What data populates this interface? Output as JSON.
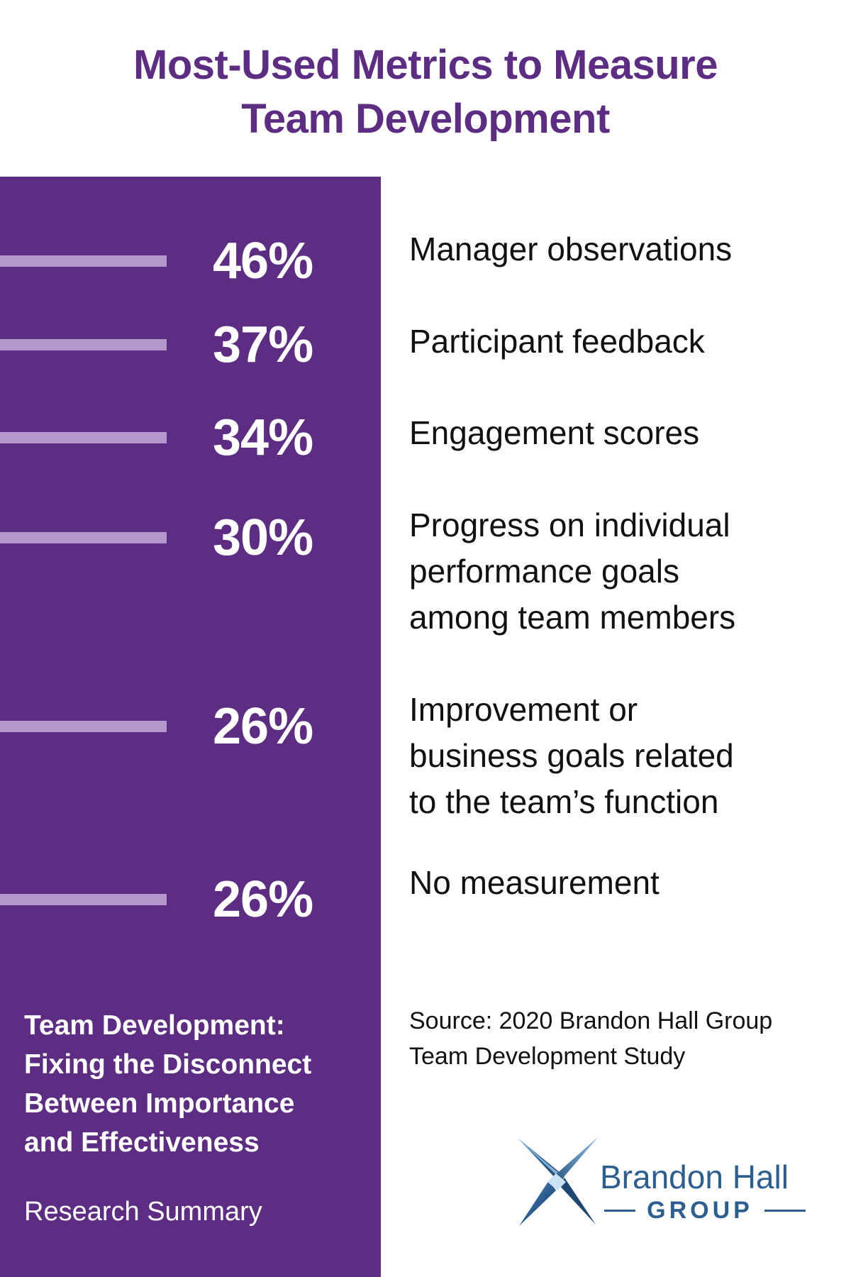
{
  "title": {
    "line1": "Most-Used Metrics to Measure",
    "line2": "Team Development"
  },
  "chart_data": {
    "type": "bar",
    "categories": [
      "Manager observations",
      "Participant feedback",
      "Engagement scores",
      "Progress on individual performance goals among team members",
      "Improvement or business goals related to the team’s function",
      "No measurement"
    ],
    "values": [
      46,
      37,
      34,
      30,
      26,
      26
    ],
    "value_labels": [
      "46%",
      "37%",
      "34%",
      "30%",
      "26%",
      "26%"
    ],
    "label_lines": [
      [
        "Manager observations"
      ],
      [
        "Participant feedback"
      ],
      [
        "Engagement scores"
      ],
      [
        "Progress on individual",
        "performance goals",
        "among team members"
      ],
      [
        "Improvement or",
        "business goals related",
        "to the team’s function"
      ],
      [
        "No measurement"
      ]
    ],
    "title": "Most-Used Metrics to Measure Team Development",
    "xlabel": "",
    "ylabel": ""
  },
  "report": {
    "title_lines": [
      "Team Development:",
      "Fixing the Disconnect",
      "Between Importance",
      "and Effectiveness"
    ],
    "subtitle": "Research Summary"
  },
  "source": {
    "line1": "Source: 2020 Brandon Hall Group",
    "line2": "Team Development Study"
  },
  "logo": {
    "name": "Brandon Hall",
    "group": "GROUP",
    "icon": "brandon-hall-x-logo-icon"
  },
  "colors": {
    "purple": "#5c2d82",
    "bar": "#b497cc",
    "logo_blue": "#2c5f8f"
  }
}
